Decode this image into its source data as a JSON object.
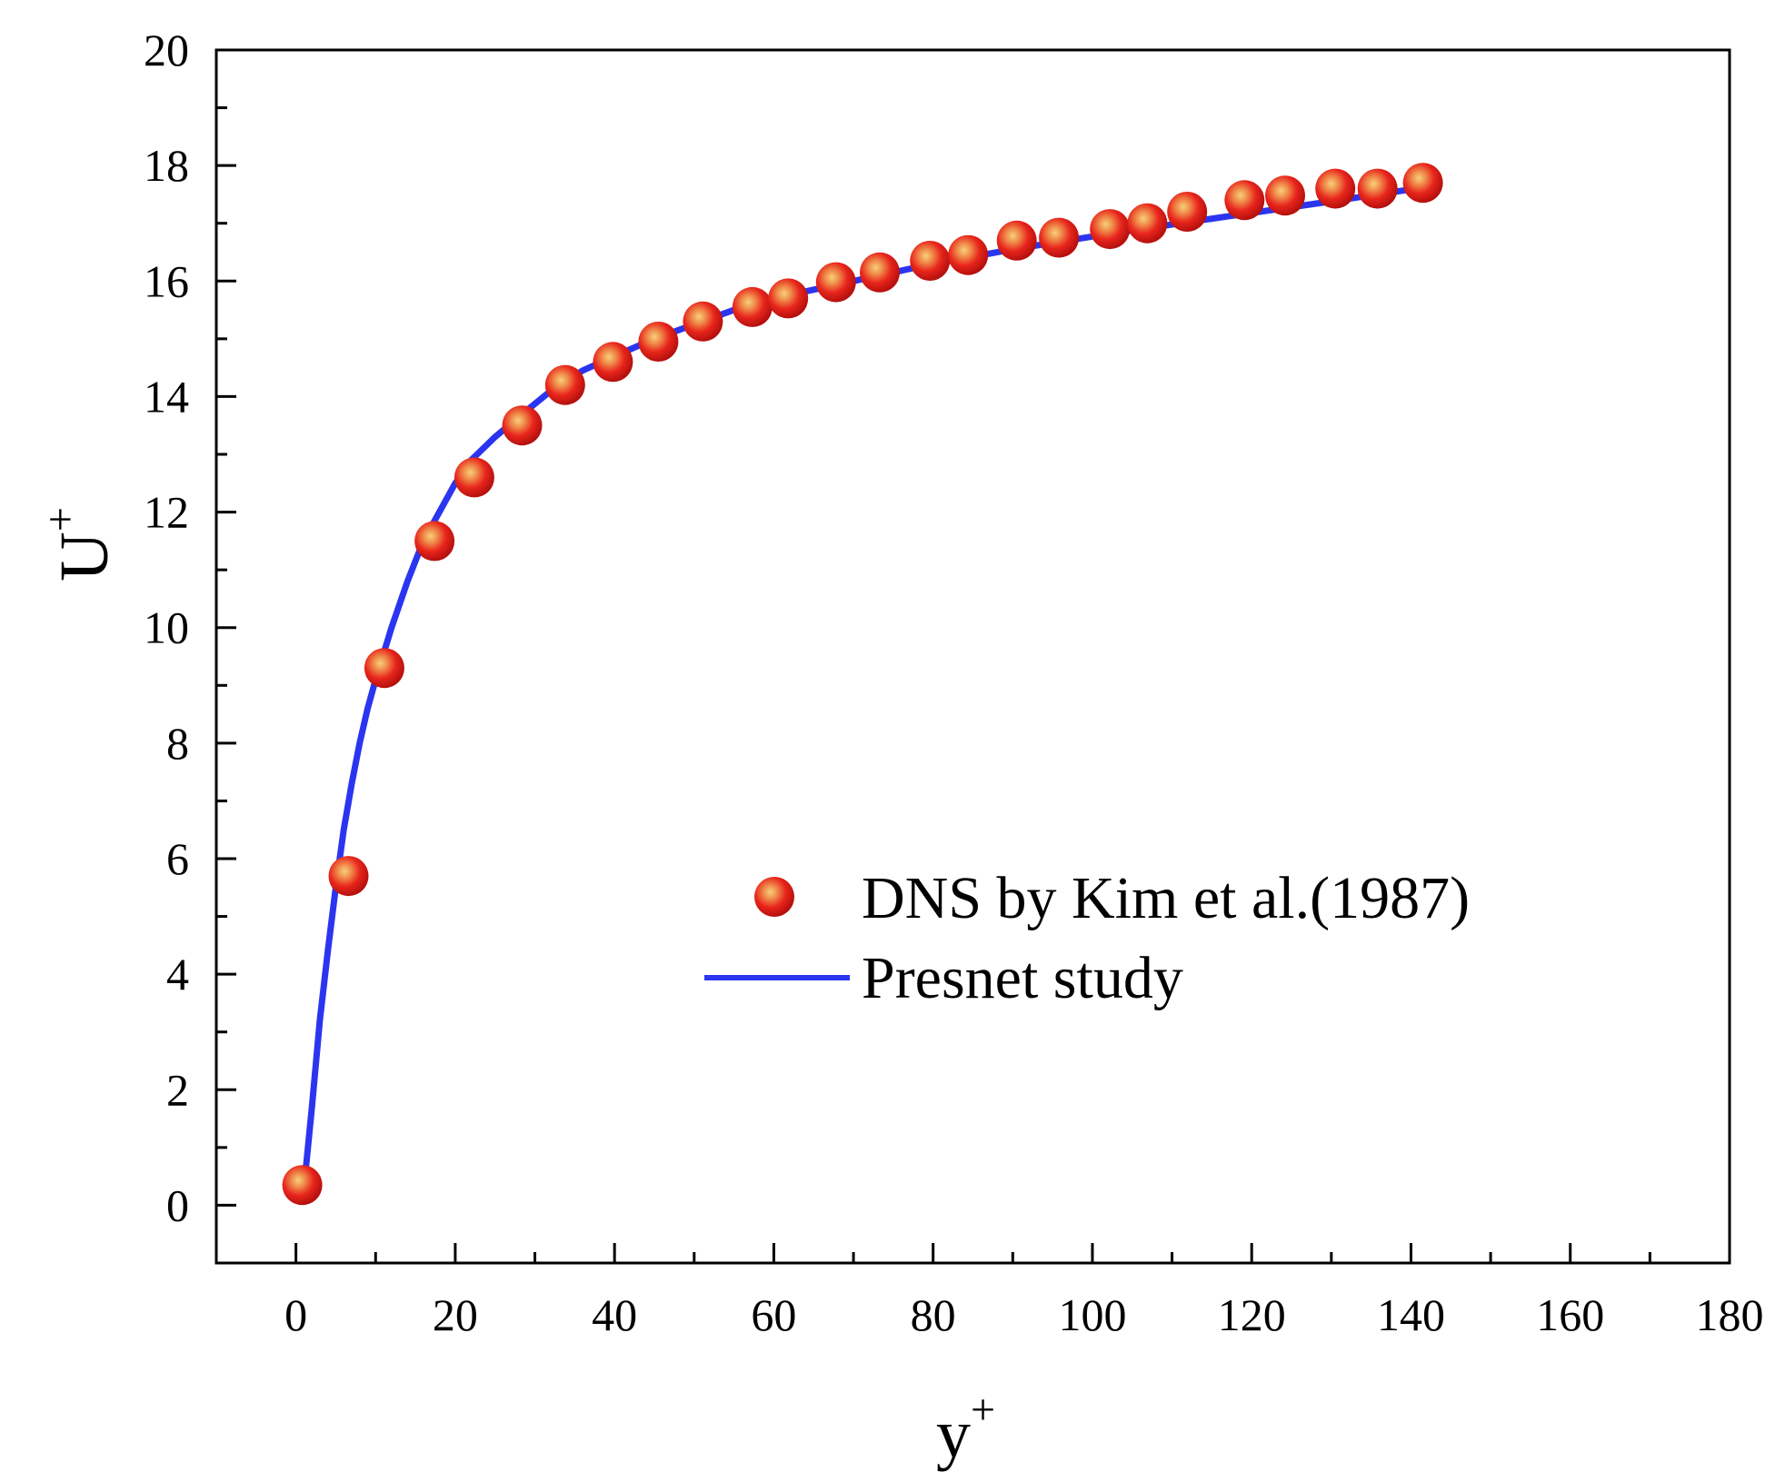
{
  "chart_data": {
    "type": "line",
    "title": "",
    "xlabel": "y",
    "xlabel_sup": "+",
    "ylabel": "U",
    "ylabel_sup": "+",
    "xlim": [
      -10,
      180
    ],
    "ylim": [
      -1,
      20
    ],
    "x_ticks": [
      0,
      20,
      40,
      60,
      80,
      100,
      120,
      140,
      160,
      180
    ],
    "y_ticks": [
      0,
      2,
      4,
      6,
      8,
      10,
      12,
      14,
      16,
      18,
      20
    ],
    "x_minor_step": 10,
    "y_minor_step": 1,
    "grid": false,
    "legend_position": "center-right",
    "series": [
      {
        "name": "DNS by Kim et al.(1987)",
        "kind": "scatter",
        "marker_color": "#e8251c",
        "highlight_color": "#f7d07a",
        "x": [
          0.8,
          6.6,
          11.1,
          17.4,
          22.4,
          28.4,
          33.8,
          39.8,
          45.5,
          51.1,
          57.3,
          61.8,
          67.8,
          73.3,
          79.6,
          84.4,
          90.5,
          95.8,
          102.2,
          106.9,
          111.9,
          119.1,
          124.2,
          130.5,
          135.8,
          141.5
        ],
        "y": [
          0.35,
          5.7,
          9.3,
          11.5,
          12.6,
          13.5,
          14.2,
          14.6,
          14.95,
          15.3,
          15.55,
          15.7,
          15.98,
          16.15,
          16.35,
          16.45,
          16.7,
          16.75,
          16.9,
          17.0,
          17.2,
          17.4,
          17.48,
          17.6,
          17.6,
          17.7
        ]
      },
      {
        "name": "Presnet study",
        "kind": "line",
        "line_color": "#2b35f0",
        "x": [
          1,
          2,
          3,
          4,
          5,
          6,
          7,
          8,
          9,
          10,
          12,
          14,
          16,
          18,
          20,
          22,
          25,
          28,
          32,
          36,
          40,
          45,
          50,
          55,
          60,
          65,
          70,
          75,
          80,
          85,
          90,
          95,
          100,
          110,
          120,
          130,
          143
        ],
        "y": [
          0.3,
          1.7,
          3.2,
          4.4,
          5.5,
          6.5,
          7.3,
          8.0,
          8.6,
          9.1,
          10.0,
          10.8,
          11.5,
          12.0,
          12.5,
          12.9,
          13.3,
          13.65,
          14.1,
          14.45,
          14.7,
          15.0,
          15.25,
          15.5,
          15.7,
          15.85,
          16.0,
          16.15,
          16.3,
          16.42,
          16.55,
          16.66,
          16.77,
          16.98,
          17.18,
          17.38,
          17.65
        ]
      }
    ]
  }
}
